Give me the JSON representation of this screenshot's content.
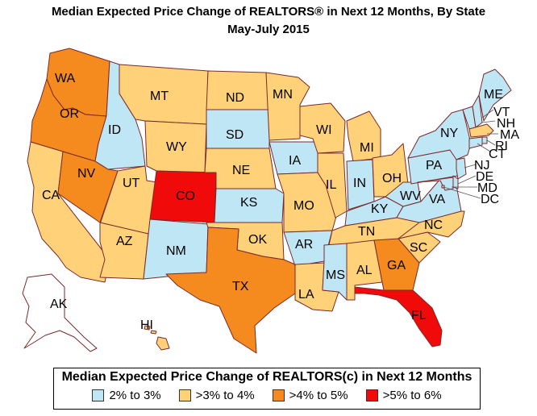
{
  "title_line1": "Median Expected Price Change of REALTORS® in Next 12 Months, By State",
  "title_line2": "May-July 2015",
  "legend": {
    "title": "Median Expected Price Change of REALTORS(c) in Next 12 Months",
    "items": [
      {
        "key": "c1",
        "label": "2% to 3%",
        "color": "#bfe6f5"
      },
      {
        "key": "c2",
        "label": ">3% to 4%",
        "color": "#ffd27a"
      },
      {
        "key": "c3",
        "label": ">4% to 5%",
        "color": "#f58a1f"
      },
      {
        "key": "c4",
        "label": ">5% to 6%",
        "color": "#f00a0a"
      }
    ]
  },
  "states": [
    {
      "abbr": "WA",
      "cat": "c3"
    },
    {
      "abbr": "OR",
      "cat": "c3"
    },
    {
      "abbr": "CA",
      "cat": "c2"
    },
    {
      "abbr": "ID",
      "cat": "c1"
    },
    {
      "abbr": "NV",
      "cat": "c3"
    },
    {
      "abbr": "UT",
      "cat": "c2"
    },
    {
      "abbr": "AZ",
      "cat": "c2"
    },
    {
      "abbr": "MT",
      "cat": "c2"
    },
    {
      "abbr": "WY",
      "cat": "c2"
    },
    {
      "abbr": "CO",
      "cat": "c4"
    },
    {
      "abbr": "NM",
      "cat": "c1"
    },
    {
      "abbr": "ND",
      "cat": "c2"
    },
    {
      "abbr": "SD",
      "cat": "c1"
    },
    {
      "abbr": "NE",
      "cat": "c2"
    },
    {
      "abbr": "KS",
      "cat": "c1"
    },
    {
      "abbr": "OK",
      "cat": "c2"
    },
    {
      "abbr": "TX",
      "cat": "c3"
    },
    {
      "abbr": "MN",
      "cat": "c2"
    },
    {
      "abbr": "IA",
      "cat": "c1"
    },
    {
      "abbr": "MO",
      "cat": "c2"
    },
    {
      "abbr": "AR",
      "cat": "c1"
    },
    {
      "abbr": "LA",
      "cat": "c2"
    },
    {
      "abbr": "WI",
      "cat": "c2"
    },
    {
      "abbr": "IL",
      "cat": "c2"
    },
    {
      "abbr": "MI",
      "cat": "c2"
    },
    {
      "abbr": "IN",
      "cat": "c1"
    },
    {
      "abbr": "OH",
      "cat": "c2"
    },
    {
      "abbr": "KY",
      "cat": "c1"
    },
    {
      "abbr": "TN",
      "cat": "c2"
    },
    {
      "abbr": "MS",
      "cat": "c1"
    },
    {
      "abbr": "AL",
      "cat": "c2"
    },
    {
      "abbr": "GA",
      "cat": "c3"
    },
    {
      "abbr": "FL",
      "cat": "c4"
    },
    {
      "abbr": "SC",
      "cat": "c2"
    },
    {
      "abbr": "NC",
      "cat": "c2"
    },
    {
      "abbr": "VA",
      "cat": "c1"
    },
    {
      "abbr": "WV",
      "cat": "c1"
    },
    {
      "abbr": "PA",
      "cat": "c1"
    },
    {
      "abbr": "NY",
      "cat": "c1"
    },
    {
      "abbr": "VT",
      "cat": "c1"
    },
    {
      "abbr": "NH",
      "cat": "c1"
    },
    {
      "abbr": "ME",
      "cat": "c1"
    },
    {
      "abbr": "MA",
      "cat": "c2"
    },
    {
      "abbr": "RI",
      "cat": "c1"
    },
    {
      "abbr": "CT",
      "cat": "c1"
    },
    {
      "abbr": "NJ",
      "cat": "c1"
    },
    {
      "abbr": "DE",
      "cat": "c1"
    },
    {
      "abbr": "MD",
      "cat": "c1"
    },
    {
      "abbr": "DC",
      "cat": "c1"
    },
    {
      "abbr": "AK",
      "cat": "none"
    },
    {
      "abbr": "HI",
      "cat": "c2"
    }
  ]
}
